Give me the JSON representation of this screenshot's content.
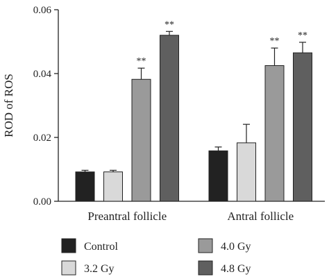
{
  "chart_data": {
    "type": "bar",
    "ylabel": "ROD of ROS",
    "xlabel": "",
    "title": "",
    "ylim": [
      0,
      0.06
    ],
    "yticks": [
      "0.00",
      "0.02",
      "0.04",
      "0.06"
    ],
    "categories": [
      "Preantral follicle",
      "Antral follicle"
    ],
    "series": [
      {
        "name": "Control",
        "color": "#222222",
        "values": [
          0.0092,
          0.0158
        ],
        "errors": [
          0.0005,
          0.0012
        ],
        "sig": [
          "",
          ""
        ]
      },
      {
        "name": "3.2 Gy",
        "color": "#d9d9d9",
        "values": [
          0.0092,
          0.0183
        ],
        "errors": [
          0.0005,
          0.0058
        ],
        "sig": [
          "",
          ""
        ]
      },
      {
        "name": "4.0 Gy",
        "color": "#9a9a9a",
        "values": [
          0.0382,
          0.0425
        ],
        "errors": [
          0.0035,
          0.0055
        ],
        "sig": [
          "**",
          "**"
        ]
      },
      {
        "name": "4.8 Gy",
        "color": "#5f5f5f",
        "values": [
          0.052,
          0.0465
        ],
        "errors": [
          0.0012,
          0.0033
        ],
        "sig": [
          "**",
          "**"
        ]
      }
    ],
    "legend_position": "bottom",
    "grid": false
  }
}
